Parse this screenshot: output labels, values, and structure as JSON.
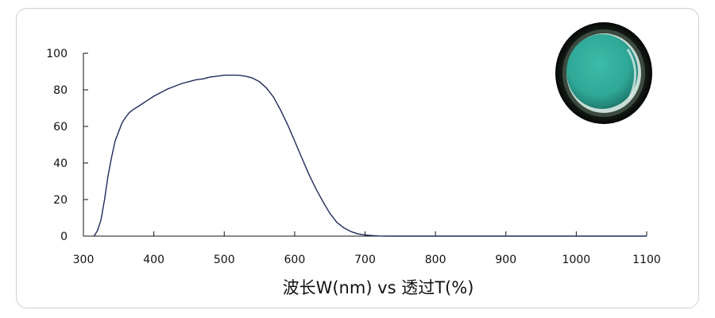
{
  "chart_data": {
    "type": "line",
    "title": "",
    "xlabel": "波长W(nm) vs 透过T(%)",
    "ylabel": "",
    "xlim": [
      300,
      1100
    ],
    "ylim": [
      0,
      100
    ],
    "x_ticks": [
      "300",
      "400",
      "500",
      "600",
      "700",
      "800",
      "900",
      "1000",
      "1100"
    ],
    "y_ticks": [
      "0",
      "20",
      "40",
      "60",
      "80",
      "100"
    ],
    "grid": false,
    "legend": "none",
    "line_color": "#1f2a5a",
    "series": [
      {
        "x": [
          315,
          320,
          325,
          330,
          335,
          340,
          345,
          350,
          355,
          360,
          365,
          370,
          380,
          390,
          400,
          410,
          420,
          430,
          440,
          450,
          460,
          470,
          480,
          490,
          500,
          510,
          520,
          530,
          540,
          550,
          560,
          570,
          580,
          590,
          600,
          610,
          620,
          630,
          640,
          650,
          660,
          670,
          680,
          690,
          700,
          710,
          720,
          730,
          740,
          760,
          800,
          900,
          1000,
          1100
        ],
        "y": [
          0,
          3,
          9,
          20,
          33,
          43,
          52,
          57,
          62,
          65,
          67.5,
          69,
          71.5,
          74,
          76.5,
          78.5,
          80.5,
          82,
          83.5,
          84.5,
          85.5,
          86,
          87,
          87.5,
          88,
          88,
          88,
          87.5,
          86.5,
          84.5,
          81,
          76,
          69,
          61,
          52,
          43,
          34,
          26,
          19,
          12.5,
          7.5,
          4.5,
          2.5,
          1.2,
          0.6,
          0.3,
          0.1,
          0,
          0,
          0,
          0,
          0,
          0,
          0
        ]
      }
    ]
  },
  "filter_image": {
    "icon": "green-filter-lens-icon",
    "glass_color": "#2fa898",
    "ring_color": "#0d1510"
  }
}
